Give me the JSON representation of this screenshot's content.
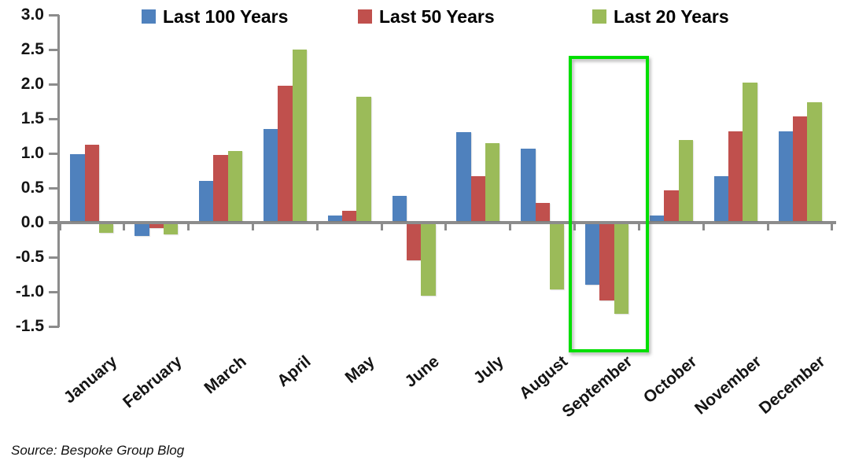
{
  "source_note": "Source: Bespoke Group Blog",
  "colors": {
    "axis": "#8C8C8C",
    "highlight_box": "#00DF00",
    "background": "#FFFFFF",
    "text": "#141414"
  },
  "chart_data": {
    "type": "bar",
    "title": "",
    "xlabel": "",
    "ylabel": "",
    "categories": [
      "January",
      "February",
      "March",
      "April",
      "May",
      "June",
      "July",
      "August",
      "September",
      "October",
      "November",
      "December"
    ],
    "series": [
      {
        "name": "Last 100 Years",
        "color": "#4F81BD",
        "values": [
          0.97,
          -0.17,
          0.58,
          1.33,
          0.08,
          0.36,
          1.28,
          1.05,
          -0.88,
          0.08,
          0.65,
          1.3
        ]
      },
      {
        "name": "Last 50 Years",
        "color": "#C0504D",
        "values": [
          1.1,
          -0.06,
          0.95,
          1.95,
          0.15,
          -0.52,
          0.65,
          0.26,
          -1.1,
          0.44,
          1.3,
          1.51
        ]
      },
      {
        "name": "Last 20 Years",
        "color": "#9BBB59",
        "values": [
          -0.12,
          -0.15,
          1.01,
          2.48,
          1.8,
          -1.03,
          1.13,
          -0.94,
          -1.29,
          1.17,
          2.0,
          1.72
        ]
      }
    ],
    "ylim": [
      -1.5,
      3.0
    ],
    "ytick_step": 0.5,
    "yticks": [
      3.0,
      2.5,
      2.0,
      1.5,
      1.0,
      0.5,
      0.0,
      -0.5,
      -1.0,
      -1.5
    ],
    "grid": false,
    "legend_position": "top",
    "highlight": {
      "category": "September",
      "note": "green outline box around September group"
    }
  }
}
